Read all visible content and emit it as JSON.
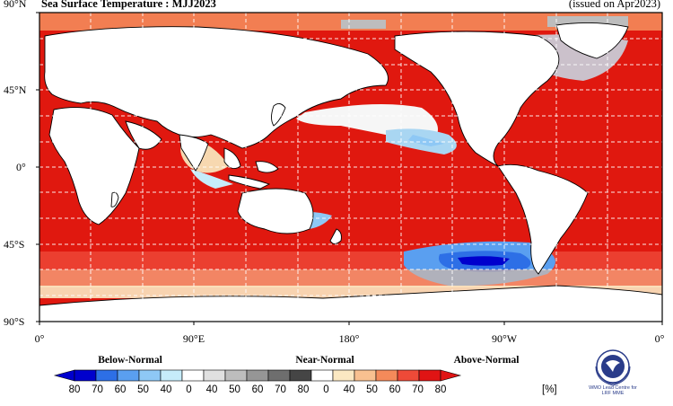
{
  "title": "Sea Surface Temperature : MJJ2023",
  "issued": "(issued on Apr2023)",
  "lat_labels": [
    "90°N",
    "45°N",
    "0°",
    "45°S",
    "90°S"
  ],
  "lon_labels": [
    "0°",
    "90°E",
    "180°",
    "90°W",
    "0°"
  ],
  "legend": {
    "category_labels": [
      "Below-Normal",
      "Near-Normal",
      "Above-Normal"
    ],
    "ticks": [
      "80",
      "70",
      "60",
      "50",
      "40",
      "0",
      "40",
      "50",
      "60",
      "70",
      "80",
      "0",
      "40",
      "50",
      "60",
      "70",
      "80"
    ],
    "unit": "[%]",
    "colors": {
      "below": [
        "#0000cd",
        "#2d6fe6",
        "#5a9ff0",
        "#8ec8f5",
        "#c6ecfa"
      ],
      "near": [
        "#ffffff",
        "#e0e0e0",
        "#bdbdbd",
        "#969696",
        "#6e6e6e",
        "#454545"
      ],
      "above": [
        "#ffffff",
        "#fbe8c2",
        "#f8c090",
        "#f48a5a",
        "#ee4a38",
        "#e01414"
      ]
    }
  },
  "logo": {
    "icon": "wmo-emblem",
    "text_line1": "WMO Lead Centre for",
    "text_line2": "LRF MME"
  }
}
